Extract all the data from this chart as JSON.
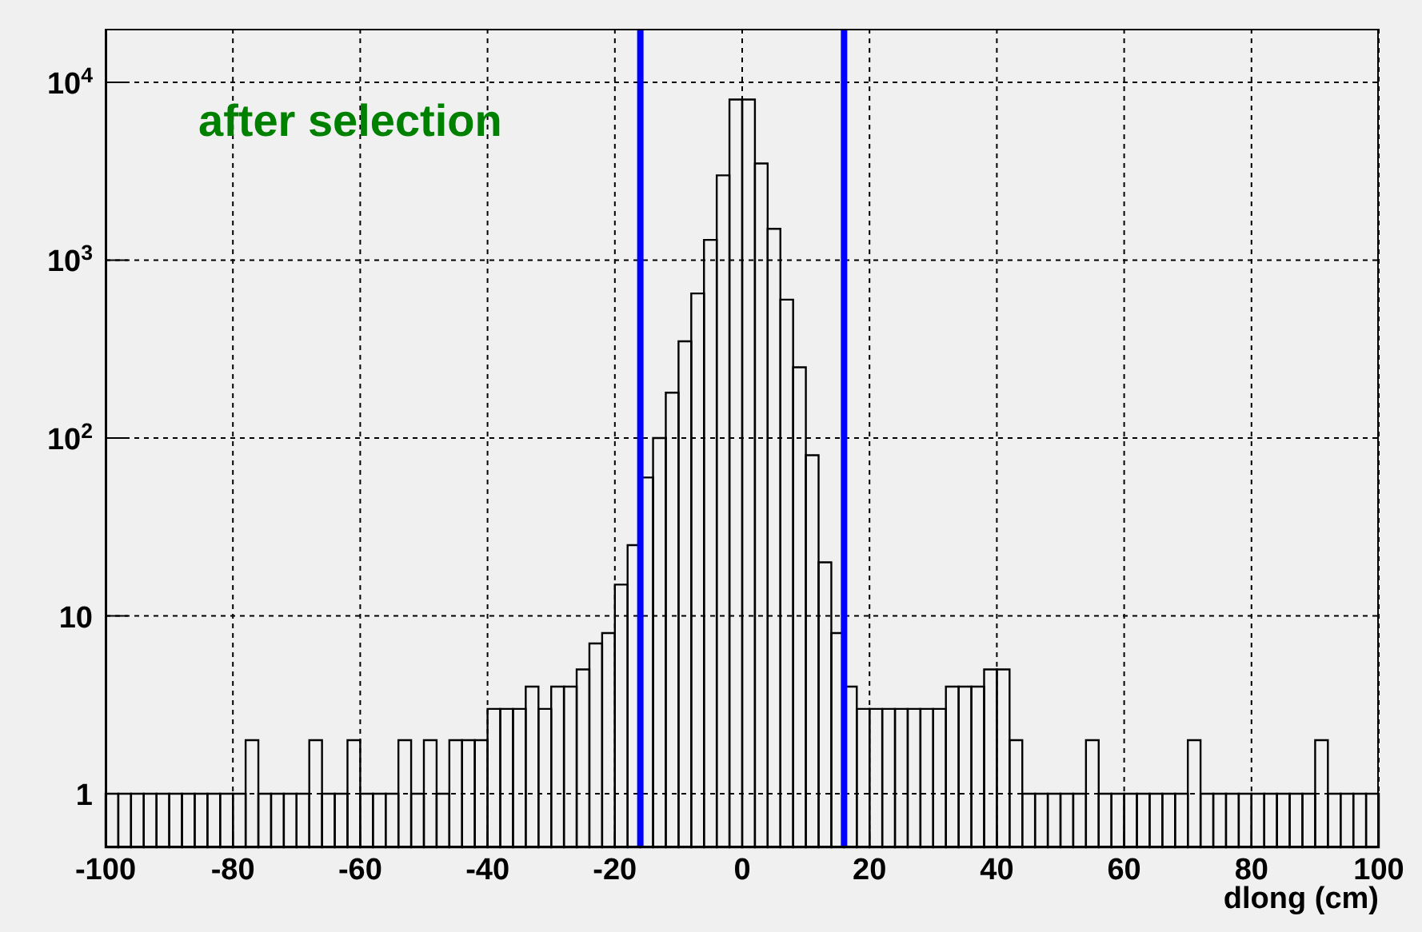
{
  "chart_data": {
    "type": "histogram",
    "xlabel": "dlong (cm)",
    "annotations": [
      "after selection"
    ],
    "bins": [
      -100,
      -98,
      -96,
      -94,
      -92,
      -90,
      -88,
      -86,
      -84,
      -82,
      -80,
      -78,
      -76,
      -74,
      -72,
      -70,
      -68,
      -66,
      -64,
      -62,
      -60,
      -58,
      -56,
      -54,
      -52,
      -50,
      -48,
      -46,
      -44,
      -42,
      -40,
      -38,
      -36,
      -34,
      -32,
      -30,
      -28,
      -26,
      -24,
      -22,
      -20,
      -18,
      -16,
      -14,
      -12,
      -10,
      -8,
      -6,
      -4,
      -2,
      0,
      2,
      4,
      6,
      8,
      10,
      12,
      14,
      16,
      18,
      20,
      22,
      24,
      26,
      28,
      30,
      32,
      34,
      36,
      38,
      40,
      42,
      44,
      46,
      48,
      50,
      52,
      54,
      56,
      58,
      60,
      62,
      64,
      66,
      68,
      70,
      72,
      74,
      76,
      78,
      80,
      82,
      84,
      86,
      88,
      90,
      92,
      94,
      96,
      98,
      100
    ],
    "values": [
      1,
      1,
      1,
      1,
      1,
      1,
      1,
      1,
      1,
      1,
      1,
      2,
      1,
      1,
      1,
      1,
      2,
      1,
      1,
      2,
      1,
      1,
      1,
      2,
      1,
      2,
      1,
      2,
      2,
      2,
      3,
      3,
      3,
      4,
      3,
      4,
      4,
      5,
      7,
      8,
      15,
      25,
      60,
      100,
      180,
      350,
      650,
      1300,
      3000,
      8000,
      8000,
      3500,
      1500,
      600,
      250,
      80,
      20,
      8,
      4,
      3,
      3,
      3,
      3,
      3,
      3,
      3,
      4,
      4,
      4,
      5,
      5,
      2,
      1,
      1,
      1,
      1,
      1,
      2,
      1,
      1,
      1,
      1,
      1,
      1,
      1,
      2,
      1,
      1,
      1,
      1,
      1,
      1,
      1,
      1,
      1,
      2,
      1,
      1,
      1,
      1
    ],
    "color": "#000000",
    "log": "y",
    "xlim": [
      -100,
      100
    ],
    "xticks": [
      -100,
      -80,
      -60,
      -40,
      -20,
      0,
      20,
      40,
      60,
      80,
      100
    ],
    "ylim": [
      0.5,
      20000
    ],
    "yticks": [
      1,
      10,
      {
        "value": 100,
        "label": "10$^{2}$"
      },
      {
        "value": 1000,
        "label": "10$^{3}$"
      },
      {
        "value": 10000,
        "label": "10$^{4}$"
      }
    ],
    "grid": true,
    "ref_lines": [
      {
        "axis": "x",
        "value": -16,
        "color": "#0000ff"
      },
      {
        "axis": "x",
        "value": 16,
        "color": "#0000ff"
      }
    ]
  }
}
